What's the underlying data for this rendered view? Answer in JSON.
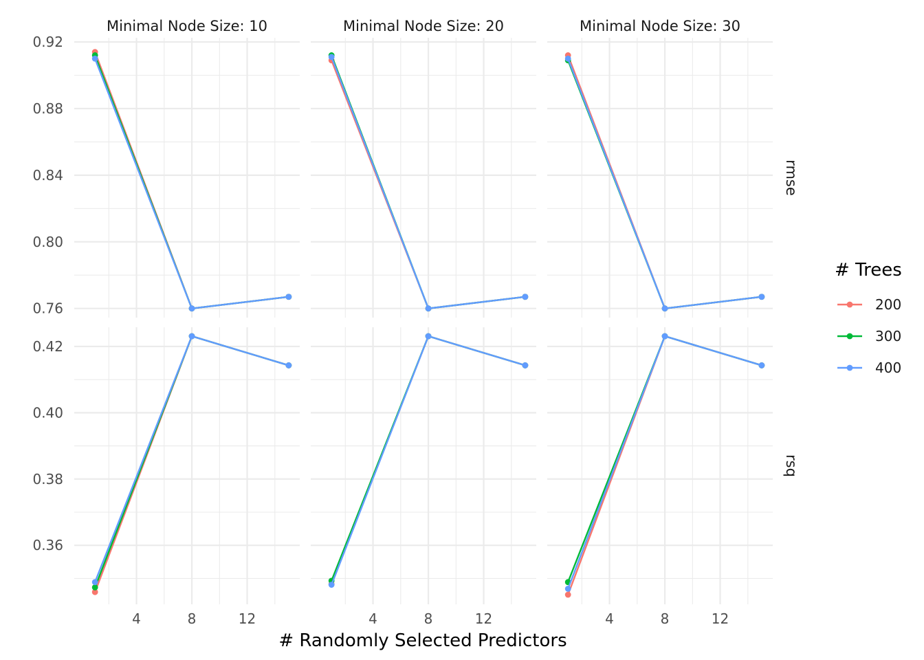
{
  "chart_data": {
    "type": "line",
    "facet_columns": [
      "Minimal Node Size: 10",
      "Minimal Node Size: 20",
      "Minimal Node Size: 30"
    ],
    "facet_rows": [
      "rmse",
      "rsq"
    ],
    "xlabel": "# Randomly Selected Predictors",
    "ylabel": "",
    "x_ticks": [
      4,
      8,
      12
    ],
    "x_values": [
      1,
      8,
      15
    ],
    "xlim": [
      -0.5,
      15.8
    ],
    "y_axes": {
      "rmse": {
        "ticks": [
          "0.76",
          "0.80",
          "0.84",
          "0.88",
          "0.92"
        ],
        "tick_values": [
          0.76,
          0.8,
          0.84,
          0.88,
          0.92
        ],
        "ylim": [
          0.7545,
          0.9225
        ]
      },
      "rsq": {
        "ticks": [
          "0.36",
          "0.38",
          "0.40",
          "0.42"
        ],
        "tick_values": [
          0.36,
          0.38,
          0.4,
          0.42
        ],
        "ylim": [
          0.3422,
          0.4258
        ]
      }
    },
    "legend": {
      "title": "# Trees",
      "position": "right",
      "entries": [
        {
          "name": "200",
          "color": "#F8766D"
        },
        {
          "name": "300",
          "color": "#00BA38"
        },
        {
          "name": "400",
          "color": "#619CFF"
        }
      ]
    },
    "grid": true,
    "panels": [
      {
        "col": 0,
        "row": "rmse",
        "series": [
          {
            "name": "200",
            "values": [
              0.914,
              0.76,
              0.767
            ]
          },
          {
            "name": "300",
            "values": [
              0.912,
              0.76,
              0.767
            ]
          },
          {
            "name": "400",
            "values": [
              0.91,
              0.76,
              0.767
            ]
          }
        ]
      },
      {
        "col": 1,
        "row": "rmse",
        "series": [
          {
            "name": "200",
            "values": [
              0.909,
              0.76,
              0.767
            ]
          },
          {
            "name": "300",
            "values": [
              0.912,
              0.76,
              0.767
            ]
          },
          {
            "name": "400",
            "values": [
              0.911,
              0.76,
              0.767
            ]
          }
        ]
      },
      {
        "col": 2,
        "row": "rmse",
        "series": [
          {
            "name": "200",
            "values": [
              0.912,
              0.76,
              0.767
            ]
          },
          {
            "name": "300",
            "values": [
              0.909,
              0.76,
              0.767
            ]
          },
          {
            "name": "400",
            "values": [
              0.91,
              0.76,
              0.767
            ]
          }
        ]
      },
      {
        "col": 0,
        "row": "rsq",
        "series": [
          {
            "name": "200",
            "values": [
              0.3459,
              0.4231,
              0.4143
            ]
          },
          {
            "name": "300",
            "values": [
              0.3473,
              0.4231,
              0.4143
            ]
          },
          {
            "name": "400",
            "values": [
              0.3489,
              0.4231,
              0.4143
            ]
          }
        ]
      },
      {
        "col": 1,
        "row": "rsq",
        "series": [
          {
            "name": "200",
            "values": [
              0.3483,
              0.4231,
              0.4143
            ]
          },
          {
            "name": "300",
            "values": [
              0.3493,
              0.4231,
              0.4143
            ]
          },
          {
            "name": "400",
            "values": [
              0.3481,
              0.4231,
              0.4143
            ]
          }
        ]
      },
      {
        "col": 2,
        "row": "rsq",
        "series": [
          {
            "name": "200",
            "values": [
              0.3451,
              0.4231,
              0.4143
            ]
          },
          {
            "name": "300",
            "values": [
              0.3489,
              0.4231,
              0.4143
            ]
          },
          {
            "name": "400",
            "values": [
              0.3469,
              0.4231,
              0.4143
            ]
          }
        ]
      }
    ]
  }
}
